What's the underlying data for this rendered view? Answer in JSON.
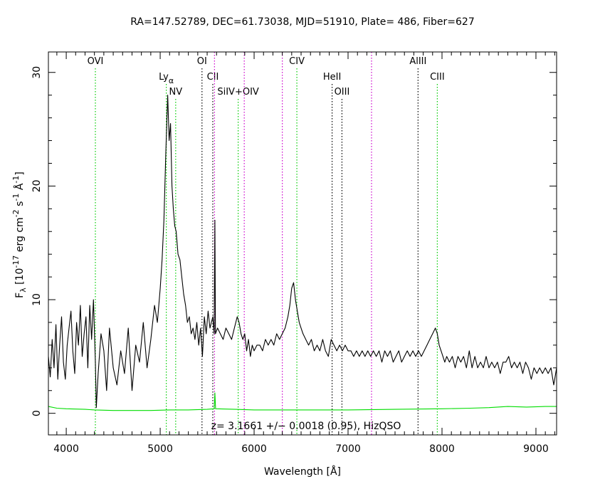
{
  "chart_data": {
    "type": "line",
    "title": "RA=147.52789, DEC=61.73038, MJD=51910, Plate= 486, Fiber=627",
    "xlabel": "Wavelength [Å]",
    "ylabel_parts": [
      "F",
      "λ",
      " [10",
      "-17",
      " erg cm",
      "-2",
      " s",
      "-1",
      " Å",
      "-1",
      "]"
    ],
    "xlim": [
      3810,
      9220
    ],
    "ylim": [
      -1.9,
      31.8
    ],
    "xticks": [
      4000,
      5000,
      6000,
      7000,
      8000,
      9000
    ],
    "yticks": [
      0,
      10,
      20,
      30
    ],
    "annotation": "z= 3.1661 +/− 0.0018 (0.95), HizQSO",
    "series": [
      {
        "color": "#000000",
        "values_xy": [
          [
            3810,
            5.0
          ],
          [
            3830,
            3.2
          ],
          [
            3850,
            6.5
          ],
          [
            3870,
            4.0
          ],
          [
            3890,
            7.8
          ],
          [
            3910,
            3.0
          ],
          [
            3930,
            6.0
          ],
          [
            3950,
            8.5
          ],
          [
            3970,
            4.5
          ],
          [
            3990,
            3.0
          ],
          [
            4010,
            6.0
          ],
          [
            4030,
            7.5
          ],
          [
            4050,
            9.0
          ],
          [
            4070,
            5.5
          ],
          [
            4090,
            3.5
          ],
          [
            4110,
            8.0
          ],
          [
            4130,
            6.0
          ],
          [
            4150,
            9.5
          ],
          [
            4170,
            5.0
          ],
          [
            4190,
            7.0
          ],
          [
            4210,
            8.5
          ],
          [
            4230,
            4.0
          ],
          [
            4250,
            9.5
          ],
          [
            4270,
            6.5
          ],
          [
            4290,
            10.0
          ],
          [
            4310,
            4.5
          ],
          [
            4320,
            0.5
          ],
          [
            4340,
            3.5
          ],
          [
            4370,
            7.0
          ],
          [
            4400,
            5.5
          ],
          [
            4430,
            2.0
          ],
          [
            4460,
            7.5
          ],
          [
            4500,
            4.0
          ],
          [
            4540,
            2.5
          ],
          [
            4580,
            5.5
          ],
          [
            4620,
            3.5
          ],
          [
            4660,
            7.5
          ],
          [
            4700,
            2.0
          ],
          [
            4740,
            6.0
          ],
          [
            4780,
            4.5
          ],
          [
            4820,
            8.0
          ],
          [
            4860,
            4.0
          ],
          [
            4900,
            6.5
          ],
          [
            4940,
            9.5
          ],
          [
            4970,
            8.0
          ],
          [
            5000,
            11.0
          ],
          [
            5020,
            13.5
          ],
          [
            5040,
            17.0
          ],
          [
            5060,
            23.0
          ],
          [
            5080,
            28.0
          ],
          [
            5095,
            24.0
          ],
          [
            5110,
            25.5
          ],
          [
            5125,
            20.0
          ],
          [
            5140,
            18.0
          ],
          [
            5155,
            16.5
          ],
          [
            5170,
            16.0
          ],
          [
            5190,
            14.0
          ],
          [
            5210,
            13.5
          ],
          [
            5230,
            12.0
          ],
          [
            5250,
            10.5
          ],
          [
            5270,
            9.5
          ],
          [
            5290,
            8.0
          ],
          [
            5310,
            8.5
          ],
          [
            5330,
            7.0
          ],
          [
            5350,
            7.5
          ],
          [
            5370,
            6.5
          ],
          [
            5390,
            8.0
          ],
          [
            5410,
            6.0
          ],
          [
            5430,
            7.5
          ],
          [
            5450,
            5.0
          ],
          [
            5470,
            8.5
          ],
          [
            5490,
            7.0
          ],
          [
            5510,
            9.0
          ],
          [
            5530,
            7.5
          ],
          [
            5560,
            8.5
          ],
          [
            5575,
            7.0
          ],
          [
            5582,
            17.0
          ],
          [
            5588,
            7.0
          ],
          [
            5610,
            7.5
          ],
          [
            5640,
            7.0
          ],
          [
            5670,
            6.5
          ],
          [
            5700,
            7.5
          ],
          [
            5730,
            7.0
          ],
          [
            5760,
            6.5
          ],
          [
            5790,
            7.5
          ],
          [
            5820,
            8.5
          ],
          [
            5840,
            8.0
          ],
          [
            5860,
            7.0
          ],
          [
            5880,
            6.5
          ],
          [
            5900,
            7.0
          ],
          [
            5920,
            5.5
          ],
          [
            5940,
            6.5
          ],
          [
            5960,
            5.0
          ],
          [
            5980,
            6.0
          ],
          [
            6000,
            5.5
          ],
          [
            6030,
            6.0
          ],
          [
            6060,
            6.0
          ],
          [
            6090,
            5.5
          ],
          [
            6120,
            6.5
          ],
          [
            6150,
            6.0
          ],
          [
            6180,
            6.5
          ],
          [
            6210,
            6.0
          ],
          [
            6240,
            7.0
          ],
          [
            6270,
            6.5
          ],
          [
            6300,
            7.0
          ],
          [
            6330,
            7.5
          ],
          [
            6360,
            8.5
          ],
          [
            6380,
            9.5
          ],
          [
            6400,
            11.0
          ],
          [
            6420,
            11.5
          ],
          [
            6440,
            10.0
          ],
          [
            6460,
            9.0
          ],
          [
            6480,
            8.0
          ],
          [
            6500,
            7.5
          ],
          [
            6520,
            7.0
          ],
          [
            6550,
            6.5
          ],
          [
            6580,
            6.0
          ],
          [
            6610,
            6.5
          ],
          [
            6640,
            5.5
          ],
          [
            6670,
            6.0
          ],
          [
            6700,
            5.5
          ],
          [
            6730,
            6.5
          ],
          [
            6760,
            5.5
          ],
          [
            6790,
            5.0
          ],
          [
            6820,
            6.5
          ],
          [
            6850,
            6.0
          ],
          [
            6880,
            5.5
          ],
          [
            6910,
            6.0
          ],
          [
            6940,
            5.5
          ],
          [
            6970,
            6.0
          ],
          [
            7000,
            5.5
          ],
          [
            7030,
            5.5
          ],
          [
            7060,
            5.0
          ],
          [
            7090,
            5.5
          ],
          [
            7120,
            5.0
          ],
          [
            7150,
            5.5
          ],
          [
            7180,
            5.0
          ],
          [
            7210,
            5.5
          ],
          [
            7240,
            5.0
          ],
          [
            7270,
            5.5
          ],
          [
            7300,
            5.0
          ],
          [
            7330,
            5.5
          ],
          [
            7360,
            4.5
          ],
          [
            7390,
            5.5
          ],
          [
            7420,
            5.0
          ],
          [
            7450,
            5.5
          ],
          [
            7480,
            4.5
          ],
          [
            7510,
            5.0
          ],
          [
            7540,
            5.5
          ],
          [
            7570,
            4.5
          ],
          [
            7600,
            5.0
          ],
          [
            7630,
            5.5
          ],
          [
            7660,
            5.0
          ],
          [
            7690,
            5.5
          ],
          [
            7720,
            5.0
          ],
          [
            7750,
            5.5
          ],
          [
            7780,
            5.0
          ],
          [
            7810,
            5.5
          ],
          [
            7840,
            6.0
          ],
          [
            7870,
            6.5
          ],
          [
            7900,
            7.0
          ],
          [
            7930,
            7.5
          ],
          [
            7950,
            7.0
          ],
          [
            7970,
            6.0
          ],
          [
            7990,
            5.5
          ],
          [
            8010,
            5.0
          ],
          [
            8030,
            4.5
          ],
          [
            8050,
            5.0
          ],
          [
            8080,
            4.5
          ],
          [
            8110,
            5.0
          ],
          [
            8140,
            4.0
          ],
          [
            8170,
            5.0
          ],
          [
            8200,
            4.5
          ],
          [
            8230,
            5.0
          ],
          [
            8260,
            4.0
          ],
          [
            8290,
            5.5
          ],
          [
            8320,
            4.0
          ],
          [
            8350,
            5.0
          ],
          [
            8380,
            4.0
          ],
          [
            8410,
            4.5
          ],
          [
            8440,
            4.0
          ],
          [
            8470,
            5.0
          ],
          [
            8500,
            4.0
          ],
          [
            8530,
            4.5
          ],
          [
            8560,
            4.0
          ],
          [
            8590,
            4.5
          ],
          [
            8620,
            3.5
          ],
          [
            8650,
            4.5
          ],
          [
            8680,
            4.5
          ],
          [
            8710,
            5.0
          ],
          [
            8740,
            4.0
          ],
          [
            8770,
            4.5
          ],
          [
            8800,
            4.0
          ],
          [
            8830,
            4.5
          ],
          [
            8860,
            3.5
          ],
          [
            8890,
            4.5
          ],
          [
            8920,
            4.0
          ],
          [
            8950,
            3.0
          ],
          [
            8980,
            4.0
          ],
          [
            9010,
            3.5
          ],
          [
            9040,
            4.0
          ],
          [
            9070,
            3.5
          ],
          [
            9100,
            4.0
          ],
          [
            9130,
            3.5
          ],
          [
            9160,
            4.0
          ],
          [
            9190,
            2.5
          ],
          [
            9220,
            4.0
          ]
        ]
      },
      {
        "color": "#00dd00",
        "values_xy": [
          [
            3810,
            0.6
          ],
          [
            3900,
            0.45
          ],
          [
            4000,
            0.4
          ],
          [
            4200,
            0.35
          ],
          [
            4300,
            0.3
          ],
          [
            4500,
            0.25
          ],
          [
            4700,
            0.25
          ],
          [
            4900,
            0.25
          ],
          [
            5100,
            0.3
          ],
          [
            5300,
            0.3
          ],
          [
            5500,
            0.35
          ],
          [
            5575,
            0.4
          ],
          [
            5582,
            1.8
          ],
          [
            5590,
            0.4
          ],
          [
            5800,
            0.35
          ],
          [
            6000,
            0.3
          ],
          [
            6200,
            0.3
          ],
          [
            6500,
            0.3
          ],
          [
            7000,
            0.3
          ],
          [
            7500,
            0.35
          ],
          [
            8000,
            0.4
          ],
          [
            8300,
            0.45
          ],
          [
            8500,
            0.5
          ],
          [
            8700,
            0.6
          ],
          [
            8900,
            0.55
          ],
          [
            9100,
            0.6
          ],
          [
            9220,
            0.6
          ]
        ]
      }
    ],
    "lines": [
      {
        "x": 4310,
        "label": "OVI",
        "color": "#00cc00",
        "row": 0
      },
      {
        "x": 5065,
        "label": "Ly",
        "sub": "α",
        "color": "#00cc00",
        "row": 1
      },
      {
        "x": 5165,
        "label": "NV",
        "color": "#00cc00",
        "row": 2
      },
      {
        "x": 5445,
        "label": "OI",
        "color": "#000000",
        "row": 0
      },
      {
        "x": 5560,
        "label": "CII",
        "color": "#000000",
        "row": 1
      },
      {
        "x": 5578,
        "label": "",
        "color": "#cc00cc",
        "row": -1
      },
      {
        "x": 5830,
        "label": "SiIV+OIV",
        "color": "#00cc00",
        "row": 2
      },
      {
        "x": 5895,
        "label": "",
        "color": "#cc00cc",
        "row": -1
      },
      {
        "x": 6300,
        "label": "",
        "color": "#cc00cc",
        "row": -1
      },
      {
        "x": 6455,
        "label": "CIV",
        "color": "#00cc00",
        "row": 0
      },
      {
        "x": 6830,
        "label": "HeII",
        "color": "#000000",
        "row": 1
      },
      {
        "x": 6935,
        "label": "OIII",
        "color": "#000000",
        "row": 2
      },
      {
        "x": 7250,
        "label": "",
        "color": "#cc00cc",
        "row": -1
      },
      {
        "x": 7745,
        "label": "AlIII",
        "color": "#000000",
        "row": 0
      },
      {
        "x": 7950,
        "label": "CIII",
        "color": "#00cc00",
        "row": 1
      }
    ]
  }
}
